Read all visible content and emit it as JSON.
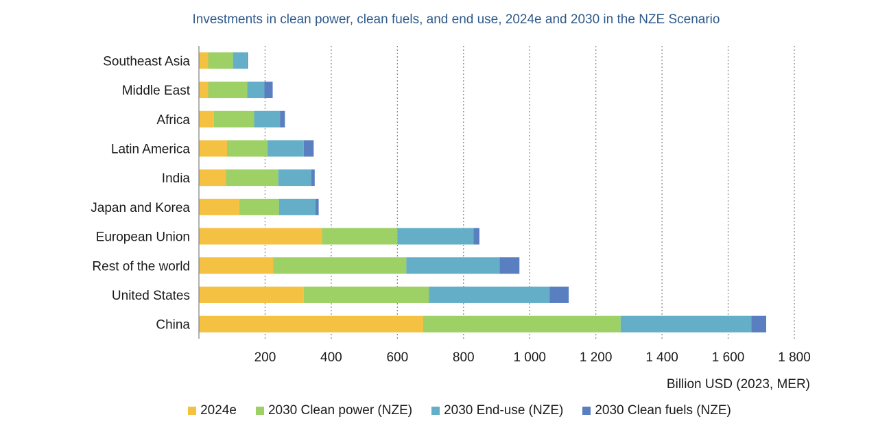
{
  "chart_data": {
    "type": "bar",
    "orientation": "horizontal",
    "stacked": true,
    "title": "Investments in clean power, clean fuels, and end use, 2024e and 2030 in the NZE Scenario",
    "xlabel": "Billion USD (2023, MER)",
    "ylabel": "",
    "xlim": [
      0,
      1800
    ],
    "x_ticks": [
      200,
      400,
      600,
      800,
      1000,
      1200,
      1400,
      1600,
      1800
    ],
    "x_tick_labels": [
      "200",
      "400",
      "600",
      "800",
      "1 000",
      "1 200",
      "1 400",
      "1 600",
      "1 800"
    ],
    "grid": "vertical dotted",
    "legend_position": "bottom",
    "categories": [
      "Southeast Asia",
      "Middle East",
      "Africa",
      "Latin America",
      "India",
      "Japan and Korea",
      "European Union",
      "Rest of the world",
      "United States",
      "China"
    ],
    "series": [
      {
        "name": "2024e",
        "color": "#f4c143",
        "values": [
          28,
          28,
          45,
          85,
          82,
          122,
          372,
          225,
          317,
          678
        ]
      },
      {
        "name": "2030 Clean power (NZE)",
        "color": "#9dd065",
        "values": [
          75,
          118,
          122,
          122,
          158,
          120,
          228,
          402,
          378,
          597
        ]
      },
      {
        "name": "2030 End-use (NZE)",
        "color": "#65aec8",
        "values": [
          42,
          52,
          78,
          110,
          100,
          110,
          230,
          282,
          365,
          395
        ]
      },
      {
        "name": "2030 Clean fuels (NZE)",
        "color": "#5a7fc0",
        "values": [
          3,
          25,
          15,
          30,
          10,
          10,
          18,
          60,
          58,
          45
        ]
      }
    ]
  }
}
